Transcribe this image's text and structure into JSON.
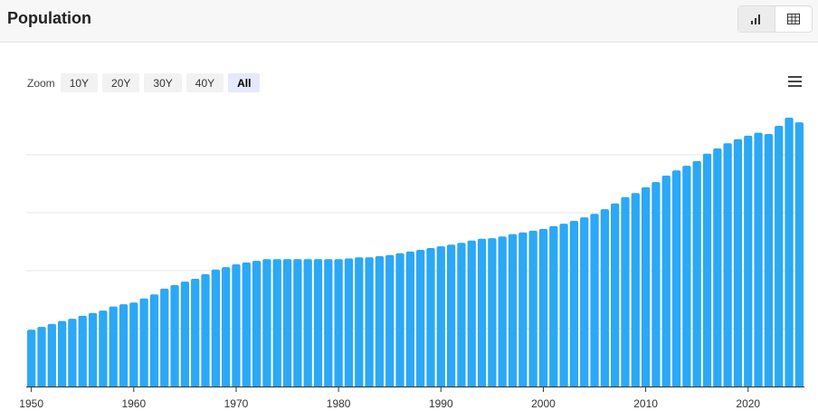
{
  "header": {
    "title": "Population"
  },
  "zoom": {
    "label": "Zoom",
    "buttons": [
      "10Y",
      "20Y",
      "30Y",
      "40Y",
      "All"
    ],
    "selected": 4
  },
  "chart_data": {
    "type": "bar",
    "x": [
      1950,
      1951,
      1952,
      1953,
      1954,
      1955,
      1956,
      1957,
      1958,
      1959,
      1960,
      1961,
      1962,
      1963,
      1964,
      1965,
      1966,
      1967,
      1968,
      1969,
      1970,
      1971,
      1972,
      1973,
      1974,
      1975,
      1976,
      1977,
      1978,
      1979,
      1980,
      1981,
      1982,
      1983,
      1984,
      1985,
      1986,
      1987,
      1988,
      1989,
      1990,
      1991,
      1992,
      1993,
      1994,
      1995,
      1996,
      1997,
      1998,
      1999,
      2000,
      2001,
      2002,
      2003,
      2004,
      2005,
      2006,
      2007,
      2008,
      2009,
      2010,
      2011,
      2012,
      2013,
      2014,
      2015,
      2016,
      2017,
      2018,
      2019,
      2020,
      2021,
      2022,
      2023,
      2024,
      2025
    ],
    "values": [
      0.98,
      1.03,
      1.08,
      1.13,
      1.17,
      1.22,
      1.27,
      1.31,
      1.38,
      1.42,
      1.45,
      1.52,
      1.59,
      1.69,
      1.75,
      1.81,
      1.86,
      1.94,
      2.02,
      2.06,
      2.11,
      2.14,
      2.17,
      2.2,
      2.2,
      2.2,
      2.2,
      2.2,
      2.2,
      2.2,
      2.2,
      2.21,
      2.23,
      2.23,
      2.25,
      2.27,
      2.3,
      2.33,
      2.36,
      2.39,
      2.42,
      2.45,
      2.48,
      2.52,
      2.55,
      2.56,
      2.59,
      2.63,
      2.66,
      2.69,
      2.72,
      2.77,
      2.81,
      2.86,
      2.92,
      2.98,
      3.06,
      3.16,
      3.27,
      3.34,
      3.44,
      3.53,
      3.64,
      3.73,
      3.81,
      3.89,
      4.02,
      4.11,
      4.2,
      4.27,
      4.33,
      4.38,
      4.36,
      4.5,
      4.64,
      4.56
    ],
    "color": "#2ba8f6",
    "xlim": [
      1949.5,
      2025.5
    ],
    "xticks": [
      1950,
      1960,
      1970,
      1980,
      1990,
      2000,
      2010,
      2020
    ],
    "ylim": [
      0,
      5
    ],
    "gridlines": [
      1,
      2,
      3,
      4
    ],
    "grid": true
  }
}
